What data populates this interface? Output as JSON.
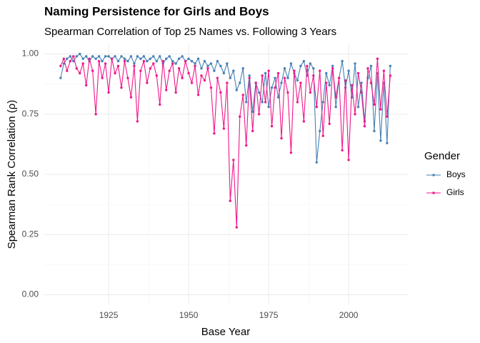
{
  "chart_data": {
    "type": "line",
    "title": "Naming Persistence for Girls and Boys",
    "subtitle": "Spearman Correlation of Top 25 Names vs. Following 3 Years",
    "x_label": "Base Year",
    "y_label": "Spearman Rank Correlation (ρ)",
    "legend_title": "Gender",
    "legend_position": "right",
    "grid": true,
    "xlim": [
      1904.9,
      2018.5
    ],
    "ylim": [
      -0.04,
      1.04
    ],
    "xticks": [
      1925,
      1950,
      1975,
      2000
    ],
    "yticks": [
      {
        "value": 0,
        "label": "0.00"
      },
      {
        "value": 0.25,
        "label": "0.25"
      },
      {
        "value": 0.5,
        "label": "0.50"
      },
      {
        "value": 0.75,
        "label": "0.75"
      },
      {
        "value": 1,
        "label": "1.00"
      }
    ],
    "x": [
      1910,
      1911,
      1912,
      1913,
      1914,
      1915,
      1916,
      1917,
      1918,
      1919,
      1920,
      1921,
      1922,
      1923,
      1924,
      1925,
      1926,
      1927,
      1928,
      1929,
      1930,
      1931,
      1932,
      1933,
      1934,
      1935,
      1936,
      1937,
      1938,
      1939,
      1940,
      1941,
      1942,
      1943,
      1944,
      1945,
      1946,
      1947,
      1948,
      1949,
      1950,
      1951,
      1952,
      1953,
      1954,
      1955,
      1956,
      1957,
      1958,
      1959,
      1960,
      1961,
      1962,
      1963,
      1964,
      1965,
      1966,
      1967,
      1968,
      1969,
      1970,
      1971,
      1972,
      1973,
      1974,
      1975,
      1976,
      1977,
      1978,
      1979,
      1980,
      1981,
      1982,
      1983,
      1984,
      1985,
      1986,
      1987,
      1988,
      1989,
      1990,
      1991,
      1992,
      1993,
      1994,
      1995,
      1996,
      1997,
      1998,
      1999,
      2000,
      2001,
      2002,
      2003,
      2004,
      2005,
      2006,
      2007,
      2008,
      2009,
      2010,
      2011,
      2012,
      2013
    ],
    "series": [
      {
        "name": "Boys",
        "color": "#4682b4",
        "values": [
          0.9,
          0.96,
          0.98,
          0.99,
          0.97,
          0.99,
          1.0,
          0.98,
          0.99,
          0.97,
          0.99,
          0.98,
          0.99,
          0.97,
          0.99,
          0.99,
          0.98,
          0.99,
          0.97,
          0.99,
          0.98,
          0.97,
          0.99,
          0.96,
          0.99,
          0.98,
          0.99,
          0.97,
          0.98,
          0.99,
          0.97,
          0.99,
          0.96,
          0.98,
          0.99,
          0.97,
          0.96,
          0.98,
          0.99,
          0.97,
          0.98,
          0.97,
          0.96,
          0.98,
          0.94,
          0.97,
          0.95,
          0.96,
          0.93,
          0.97,
          0.95,
          0.92,
          0.96,
          0.9,
          0.93,
          0.85,
          0.88,
          0.94,
          0.8,
          0.91,
          0.76,
          0.88,
          0.84,
          0.8,
          0.92,
          0.78,
          0.86,
          0.9,
          0.82,
          0.88,
          0.94,
          0.9,
          0.96,
          0.92,
          0.89,
          0.95,
          0.97,
          0.91,
          0.96,
          0.94,
          0.55,
          0.68,
          0.8,
          0.92,
          0.87,
          0.95,
          0.78,
          0.9,
          0.97,
          0.86,
          0.93,
          0.82,
          0.96,
          0.78,
          0.88,
          0.72,
          0.9,
          0.95,
          0.68,
          0.92,
          0.64,
          0.88,
          0.63,
          0.95
        ]
      },
      {
        "name": "Girls",
        "color": "#f0188c",
        "values": [
          0.95,
          0.98,
          0.93,
          0.97,
          0.99,
          0.94,
          0.92,
          0.96,
          0.87,
          0.98,
          0.93,
          0.75,
          0.97,
          0.9,
          0.96,
          0.84,
          0.98,
          0.92,
          0.95,
          0.86,
          0.97,
          0.9,
          0.82,
          0.95,
          0.72,
          0.93,
          0.97,
          0.88,
          0.94,
          0.96,
          0.91,
          0.79,
          0.97,
          0.85,
          0.93,
          0.96,
          0.84,
          0.94,
          0.9,
          0.97,
          0.92,
          0.88,
          0.95,
          0.83,
          0.91,
          0.89,
          0.94,
          0.86,
          0.67,
          0.9,
          0.84,
          0.69,
          0.88,
          0.39,
          0.56,
          0.28,
          0.74,
          0.83,
          0.62,
          0.9,
          0.68,
          0.88,
          0.75,
          0.91,
          0.8,
          0.93,
          0.7,
          0.86,
          0.92,
          0.65,
          0.9,
          0.84,
          0.59,
          0.93,
          0.8,
          0.88,
          0.72,
          0.95,
          0.84,
          0.91,
          0.78,
          0.93,
          0.66,
          0.88,
          0.71,
          0.94,
          0.82,
          0.9,
          0.6,
          0.89,
          0.56,
          0.87,
          0.75,
          0.92,
          0.84,
          0.7,
          0.94,
          0.88,
          0.79,
          0.98,
          0.77,
          0.93,
          0.74,
          0.91
        ]
      }
    ]
  }
}
